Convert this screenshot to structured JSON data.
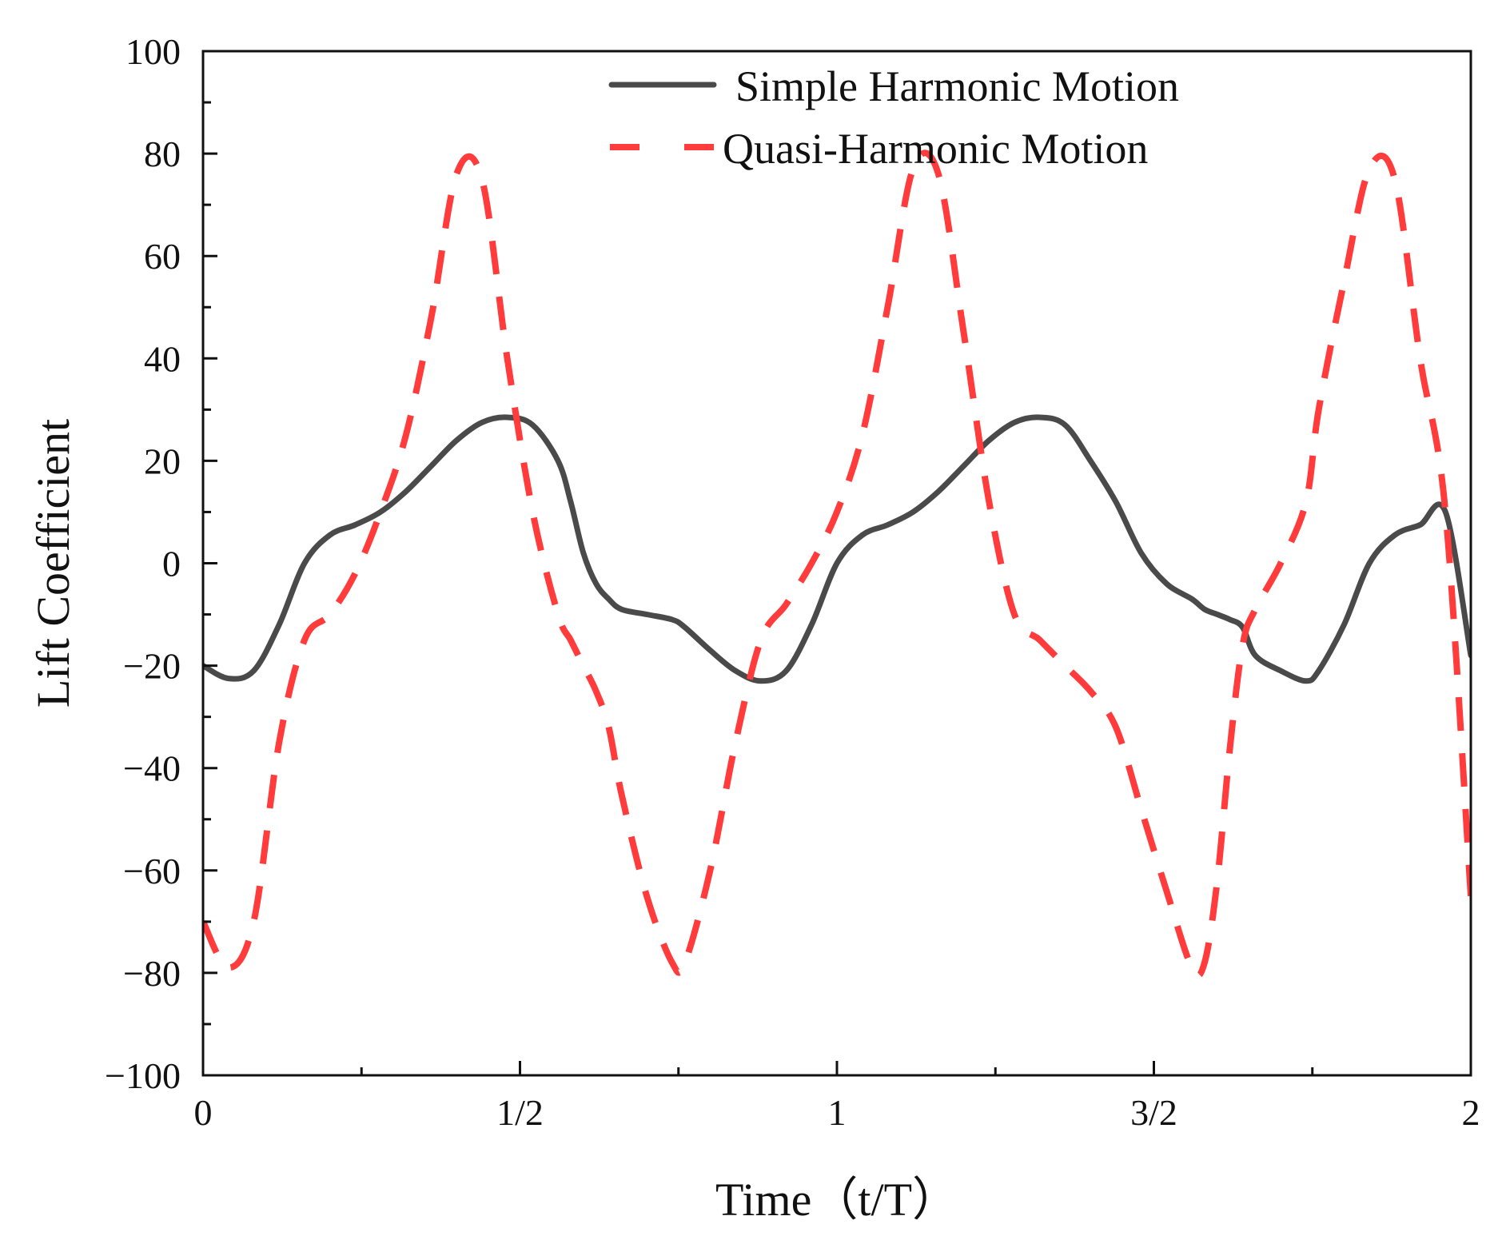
{
  "chart_data": {
    "type": "line",
    "title": "",
    "xlabel": "Time（t/T）",
    "ylabel": "Lift Coefficient",
    "xlim": [
      0,
      2
    ],
    "ylim": [
      -100,
      100
    ],
    "grid": false,
    "legend_position": "top-right",
    "x_ticks": [
      {
        "value": 0,
        "label": "0"
      },
      {
        "value": 0.5,
        "label": "1/2"
      },
      {
        "value": 1,
        "label": "1"
      },
      {
        "value": 1.5,
        "label": "3/2"
      },
      {
        "value": 2,
        "label": "2"
      }
    ],
    "x_minor_ticks": [
      0.25,
      0.75,
      1.25,
      1.75
    ],
    "y_ticks": [
      {
        "value": 100,
        "label": "100"
      },
      {
        "value": 80,
        "label": "80"
      },
      {
        "value": 60,
        "label": "60"
      },
      {
        "value": 40,
        "label": "40"
      },
      {
        "value": 20,
        "label": "20"
      },
      {
        "value": 0,
        "label": "0"
      },
      {
        "value": -20,
        "label": "−20"
      },
      {
        "value": -40,
        "label": "−40"
      },
      {
        "value": -60,
        "label": "−60"
      },
      {
        "value": -80,
        "label": "−80"
      },
      {
        "value": -100,
        "label": "−100"
      }
    ],
    "y_minor_ticks": [
      90,
      70,
      50,
      30,
      10,
      -10,
      -30,
      -50,
      -70,
      -90
    ],
    "series": [
      {
        "name": "Simple Harmonic Motion",
        "color": "#4a4a4a",
        "style": "solid",
        "x": [
          0.0,
          0.04,
          0.08,
          0.12,
          0.16,
          0.2,
          0.24,
          0.28,
          0.32,
          0.36,
          0.4,
          0.44,
          0.48,
          0.52,
          0.56,
          0.58,
          0.6,
          0.62,
          0.64,
          0.66,
          0.7,
          0.74,
          0.76,
          0.8,
          0.84,
          0.88,
          0.92,
          0.96,
          1.0,
          1.04,
          1.08,
          1.12,
          1.16,
          1.2,
          1.24,
          1.28,
          1.32,
          1.36,
          1.4,
          1.44,
          1.48,
          1.52,
          1.56,
          1.58,
          1.6,
          1.62,
          1.64,
          1.66,
          1.7,
          1.74,
          1.76,
          1.8,
          1.84,
          1.88,
          1.92,
          1.96,
          2.0
        ],
        "y": [
          -20,
          -22.5,
          -21,
          -12,
          0,
          5.5,
          7.5,
          10,
          14,
          19,
          24,
          27.5,
          28.5,
          27,
          20,
          12,
          2,
          -4,
          -7,
          -9,
          -10,
          -11,
          -12.5,
          -17,
          -21,
          -23,
          -21,
          -12,
          0,
          5.5,
          7.5,
          10,
          14,
          19,
          24,
          27.5,
          28.5,
          27,
          20,
          12,
          2,
          -4,
          -7,
          -9,
          -10,
          -11,
          -12.5,
          -18,
          -21,
          -23,
          -21,
          -12,
          0,
          5.5,
          7.5,
          10,
          -18
        ]
      },
      {
        "name": "Quasi-Harmonic Motion",
        "color": "#ff3b3b",
        "style": "dashed",
        "x": [
          0.0,
          0.04,
          0.08,
          0.12,
          0.16,
          0.2,
          0.24,
          0.28,
          0.32,
          0.36,
          0.4,
          0.44,
          0.48,
          0.52,
          0.56,
          0.58,
          0.6,
          0.62,
          0.64,
          0.66,
          0.7,
          0.74,
          0.76,
          0.8,
          0.84,
          0.88,
          0.92,
          0.96,
          1.0,
          1.04,
          1.08,
          1.12,
          1.16,
          1.2,
          1.24,
          1.28,
          1.32,
          1.36,
          1.4,
          1.44,
          1.48,
          1.52,
          1.56,
          1.58,
          1.6,
          1.62,
          1.64,
          1.66,
          1.7,
          1.74,
          1.76,
          1.8,
          1.84,
          1.88,
          1.92,
          1.96,
          2.0
        ],
        "y": [
          -70,
          -79,
          -70,
          -35,
          -15,
          -10,
          -2,
          10,
          25,
          48,
          76,
          75,
          40,
          10,
          -10,
          -15,
          -20,
          -25,
          -32,
          -45,
          -65,
          -78,
          -78,
          -60,
          -35,
          -15,
          -8,
          0,
          10,
          25,
          50,
          77,
          76,
          45,
          12,
          -10,
          -15,
          -20,
          -25,
          -32,
          -48,
          -64,
          -79,
          -78,
          -62,
          -36,
          -16,
          -9,
          0,
          12,
          30,
          55,
          77,
          75,
          40,
          10,
          -65
        ]
      }
    ]
  }
}
